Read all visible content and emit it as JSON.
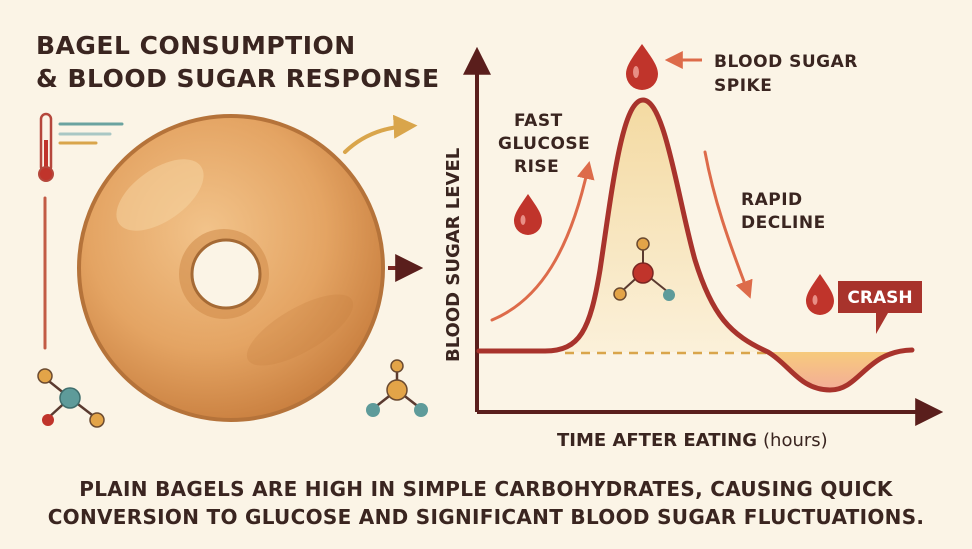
{
  "title": {
    "line1": "BAGEL CONSUMPTION",
    "line2": "& BLOOD SUGAR RESPONSE"
  },
  "graph": {
    "y_axis_label": "BLOOD SUGAR LEVEL",
    "x_axis_label": "TIME AFTER EATING",
    "x_axis_unit": "(hours)",
    "annotations": {
      "spike_line1": "BLOOD SUGAR",
      "spike_line2": "SPIKE",
      "rise_line1": "FAST",
      "rise_line2": "GLUCOSE",
      "rise_line3": "RISE",
      "decline_line1": "RAPID",
      "decline_line2": "DECLINE",
      "crash": "CRASH"
    }
  },
  "footer": {
    "line1": "PLAIN BAGELS ARE HIGH IN SIMPLE CARBOHYDRATES, CAUSING QUICK",
    "line2": "CONVERSION TO GLUCOSE AND SIGNIFICANT BLOOD SUGAR FLUCTUATIONS."
  },
  "colors": {
    "background": "#fbf4e6",
    "curve": "#a8332c",
    "axis": "#5a1e1c",
    "bagel": "#e2a060",
    "drop": "#c0342b",
    "arrow": "#dd6b4a",
    "gold_arrow": "#d9a54b"
  },
  "icons": [
    "thermometer-icon",
    "bagel-illustration",
    "blood-drop-icon",
    "molecule-icon",
    "speech-bubble-icon"
  ]
}
